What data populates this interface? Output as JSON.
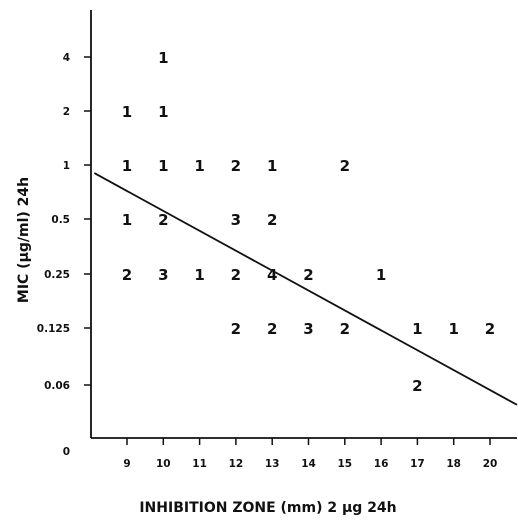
{
  "chart_data": {
    "type": "scatter",
    "xlabel": "INHIBITION ZONE (mm) 2 µg  24h",
    "ylabel": "MIC  (µg/ml)  24h",
    "x_ticks": [
      "9",
      "10",
      "11",
      "12",
      "13",
      "14",
      "15",
      "16",
      "17",
      "18",
      "20"
    ],
    "y_ticks": [
      "0",
      "0.06",
      "0.125",
      "0.25",
      "0.5",
      "1",
      "2",
      "4"
    ],
    "grid": false,
    "points": [
      {
        "x": "10",
        "y": "4",
        "count": "1"
      },
      {
        "x": "9",
        "y": "2",
        "count": "1"
      },
      {
        "x": "10",
        "y": "2",
        "count": "1"
      },
      {
        "x": "9",
        "y": "1",
        "count": "1"
      },
      {
        "x": "10",
        "y": "1",
        "count": "1"
      },
      {
        "x": "11",
        "y": "1",
        "count": "1"
      },
      {
        "x": "12",
        "y": "1",
        "count": "2"
      },
      {
        "x": "13",
        "y": "1",
        "count": "1"
      },
      {
        "x": "15",
        "y": "1",
        "count": "2"
      },
      {
        "x": "9",
        "y": "0.5",
        "count": "1"
      },
      {
        "x": "10",
        "y": "0.5",
        "count": "2"
      },
      {
        "x": "12",
        "y": "0.5",
        "count": "3"
      },
      {
        "x": "13",
        "y": "0.5",
        "count": "2"
      },
      {
        "x": "9",
        "y": "0.25",
        "count": "2"
      },
      {
        "x": "10",
        "y": "0.25",
        "count": "3"
      },
      {
        "x": "11",
        "y": "0.25",
        "count": "1"
      },
      {
        "x": "12",
        "y": "0.25",
        "count": "2"
      },
      {
        "x": "13",
        "y": "0.25",
        "count": "4"
      },
      {
        "x": "14",
        "y": "0.25",
        "count": "2"
      },
      {
        "x": "16",
        "y": "0.25",
        "count": "1"
      },
      {
        "x": "12",
        "y": "0.125",
        "count": "2"
      },
      {
        "x": "13",
        "y": "0.125",
        "count": "2"
      },
      {
        "x": "14",
        "y": "0.125",
        "count": "3"
      },
      {
        "x": "15",
        "y": "0.125",
        "count": "2"
      },
      {
        "x": "17",
        "y": "0.125",
        "count": "1"
      },
      {
        "x": "18",
        "y": "0.125",
        "count": "1"
      },
      {
        "x": "20",
        "y": "0.125",
        "count": "2"
      },
      {
        "x": "17",
        "y": "0.06",
        "count": "2"
      }
    ],
    "regression_line": {
      "from": {
        "x": 8.1,
        "y_level": 4.85
      },
      "to": {
        "x": 20.8,
        "y_level": 0.7
      }
    }
  }
}
